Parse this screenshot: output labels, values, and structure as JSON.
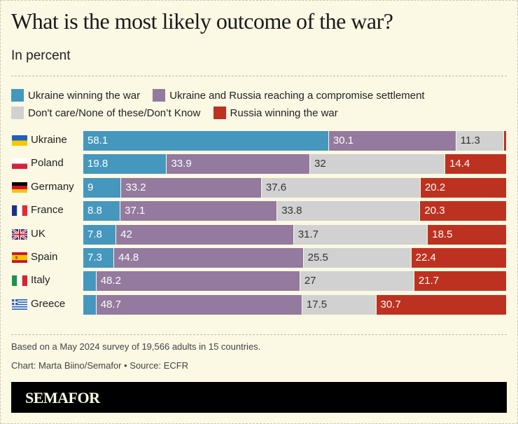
{
  "header": {
    "title": "What is the most likely outcome of the war?",
    "subtitle": "In percent"
  },
  "legend": [
    {
      "label": "Ukraine winning the war",
      "color": "#4597bd"
    },
    {
      "label": "Ukraine and Russia reaching a compromise settlement",
      "color": "#937a9e"
    },
    {
      "label": "Don't care/None of these/Don’t Know",
      "color": "#d1d1d1"
    },
    {
      "label": "Russia winning the war",
      "color": "#bd3120"
    }
  ],
  "chart_data": {
    "type": "bar",
    "orientation": "horizontal",
    "stacked": true,
    "title": "What is the most likely outcome of the war?",
    "subtitle": "In percent",
    "xlabel": "",
    "ylabel": "",
    "xlim": [
      0,
      100
    ],
    "categories": [
      "Ukraine",
      "Poland",
      "Germany",
      "France",
      "UK",
      "Spain",
      "Italy",
      "Greece"
    ],
    "flags": [
      "ukraine-flag",
      "poland-flag",
      "germany-flag",
      "france-flag",
      "uk-flag",
      "spain-flag",
      "italy-flag",
      "greece-flag"
    ],
    "series": [
      {
        "name": "Ukraine winning the war",
        "color": "#4597bd",
        "values": [
          58.1,
          19.8,
          9,
          8.8,
          7.8,
          7.3,
          3.1,
          3.1
        ],
        "labels": [
          "58.1",
          "19.8",
          "9",
          "8.8",
          "7.8",
          "7.3",
          "",
          ""
        ]
      },
      {
        "name": "Ukraine and Russia reaching a compromise settlement",
        "color": "#937a9e",
        "values": [
          30.1,
          33.9,
          33.2,
          37.1,
          42,
          44.8,
          48.2,
          48.7
        ],
        "labels": [
          "30.1",
          "33.9",
          "33.2",
          "37.1",
          "42",
          "44.8",
          "48.2",
          "48.7"
        ]
      },
      {
        "name": "Don't care/None of these/Don’t Know",
        "color": "#d1d1d1",
        "values": [
          11.3,
          32,
          37.6,
          33.8,
          31.7,
          25.5,
          27,
          17.5
        ],
        "labels": [
          "11.3",
          "32",
          "37.6",
          "33.8",
          "31.7",
          "25.5",
          "27",
          "17.5"
        ]
      },
      {
        "name": "Russia winning the war",
        "color": "#bd3120",
        "values": [
          0.5,
          14.4,
          20.2,
          20.3,
          18.5,
          22.4,
          21.7,
          30.7
        ],
        "labels": [
          "",
          "14.4",
          "20.2",
          "20.3",
          "18.5",
          "22.4",
          "21.7",
          "30.7"
        ]
      }
    ],
    "label_colors": [
      "#ffffff",
      "#ffffff",
      "#333333",
      "#ffffff"
    ],
    "legend_position": "top-left",
    "grid": false
  },
  "footer": {
    "note": "Based on a May 2024 survey of 19,566 adults in 15 countries.",
    "credit": "Chart: Marta Biino/Semafor • Source: ECFR",
    "brand": "SEMAFOR"
  }
}
